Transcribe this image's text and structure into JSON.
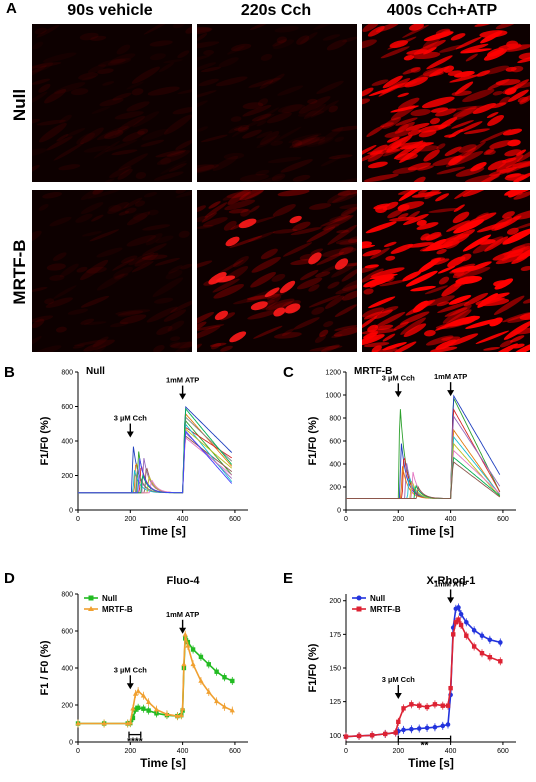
{
  "panel_A": {
    "letter": "A",
    "columns": [
      "90s vehicle",
      "220s Cch",
      "400s Cch+ATP"
    ],
    "rows": [
      "Null",
      "MRTF-B"
    ],
    "tile_intensity": [
      [
        0.12,
        0.14,
        0.85
      ],
      [
        0.14,
        0.35,
        0.95
      ]
    ]
  },
  "chart_data": [
    {
      "panel": "B",
      "type": "line",
      "title": "Null",
      "xlabel": "Time [s]",
      "ylabel": "F1/F0 (%)",
      "xlim": [
        0,
        650
      ],
      "ylim": [
        0,
        800
      ],
      "xticks": [
        0,
        200,
        400,
        600
      ],
      "yticks": [
        0,
        200,
        400,
        600,
        800
      ],
      "annotations": [
        {
          "text": "3 µM Cch",
          "x": 200,
          "y": 420
        },
        {
          "text": "1mM ATP",
          "x": 400,
          "y": 640
        }
      ],
      "series_note": "multiple single-cell traces",
      "series": [
        {
          "color": "#1f3fbf",
          "cch_onset": 205,
          "cch_peak": 380,
          "atp_peak": 600,
          "atp_decay_end": 330
        },
        {
          "color": "#e07a10",
          "cch_onset": 215,
          "cch_peak": 290,
          "atp_peak": 560,
          "atp_decay_end": 250
        },
        {
          "color": "#2ca02c",
          "cch_onset": 225,
          "cch_peak": 350,
          "atp_peak": 520,
          "atp_decay_end": 200
        },
        {
          "color": "#d62728",
          "cch_onset": 235,
          "cch_peak": 270,
          "atp_peak": 480,
          "atp_decay_end": 300
        },
        {
          "color": "#9467bd",
          "cch_onset": 245,
          "cch_peak": 310,
          "atp_peak": 450,
          "atp_decay_end": 180
        },
        {
          "color": "#8c564b",
          "cch_onset": 255,
          "cch_peak": 260,
          "atp_peak": 430,
          "atp_decay_end": 220
        },
        {
          "color": "#17becf",
          "cch_onset": 210,
          "cch_peak": 230,
          "atp_peak": 500,
          "atp_decay_end": 160
        },
        {
          "color": "#bcbd22",
          "cch_onset": 265,
          "cch_peak": 200,
          "atp_peak": 470,
          "atp_decay_end": 240
        },
        {
          "color": "#e377c2",
          "cch_onset": 275,
          "cch_peak": 180,
          "atp_peak": 420,
          "atp_decay_end": 200
        },
        {
          "color": "#7f7f7f",
          "cch_onset": 220,
          "cch_peak": 250,
          "atp_peak": 540,
          "atp_decay_end": 280
        },
        {
          "color": "#00b050",
          "cch_onset": 240,
          "cch_peak": 210,
          "atp_peak": 590,
          "atp_decay_end": 260
        },
        {
          "color": "#4040ff",
          "cch_onset": 230,
          "cch_peak": 300,
          "atp_peak": 460,
          "atp_decay_end": 150
        }
      ]
    },
    {
      "panel": "C",
      "type": "line",
      "title": "MRTF-B",
      "xlabel": "Time [s]",
      "ylabel": "F1/F0 (%)",
      "xlim": [
        0,
        650
      ],
      "ylim": [
        0,
        1200
      ],
      "xticks": [
        0,
        200,
        400,
        600
      ],
      "yticks": [
        0,
        200,
        400,
        600,
        800,
        1000,
        1200
      ],
      "annotations": [
        {
          "text": "3 µM Cch",
          "x": 200,
          "y": 980
        },
        {
          "text": "1mM ATP",
          "x": 400,
          "y": 990
        }
      ],
      "series_note": "multiple single-cell traces",
      "series": [
        {
          "color": "#2ca02c",
          "cch_onset": 200,
          "cch_peak": 950,
          "atp_peak": 980,
          "atp_decay_end": 150
        },
        {
          "color": "#1f3fbf",
          "cch_onset": 205,
          "cch_peak": 600,
          "atp_peak": 1000,
          "atp_decay_end": 300
        },
        {
          "color": "#d62728",
          "cch_onset": 215,
          "cch_peak": 500,
          "atp_peak": 880,
          "atp_decay_end": 150
        },
        {
          "color": "#9467bd",
          "cch_onset": 225,
          "cch_peak": 420,
          "atp_peak": 820,
          "atp_decay_end": 200
        },
        {
          "color": "#e07a10",
          "cch_onset": 210,
          "cch_peak": 380,
          "atp_peak": 700,
          "atp_decay_end": 120
        },
        {
          "color": "#17becf",
          "cch_onset": 235,
          "cch_peak": 300,
          "atp_peak": 640,
          "atp_decay_end": 130
        },
        {
          "color": "#bcbd22",
          "cch_onset": 245,
          "cch_peak": 260,
          "atp_peak": 580,
          "atp_decay_end": 110
        },
        {
          "color": "#e377c2",
          "cch_onset": 250,
          "cch_peak": 330,
          "atp_peak": 520,
          "atp_decay_end": 140
        },
        {
          "color": "#00b050",
          "cch_onset": 260,
          "cch_peak": 220,
          "atp_peak": 460,
          "atp_decay_end": 120
        },
        {
          "color": "#8c564b",
          "cch_onset": 270,
          "cch_peak": 200,
          "atp_peak": 420,
          "atp_decay_end": 110
        }
      ]
    },
    {
      "panel": "D",
      "type": "line",
      "title": "Fluo-4",
      "xlabel": "Time [s]",
      "ylabel": "F1 / F0 (%)",
      "xlim": [
        0,
        650
      ],
      "ylim": [
        0,
        800
      ],
      "xticks": [
        0,
        200,
        400,
        600
      ],
      "yticks": [
        0,
        200,
        400,
        600,
        800
      ],
      "legend": {
        "placement": "top-left"
      },
      "annotations": [
        {
          "text": "3 µM Cch",
          "x": 200,
          "y": 285
        },
        {
          "text": "1mM ATP",
          "x": 400,
          "y": 585
        },
        {
          "text": "****",
          "x": 215,
          "y": 20
        }
      ],
      "series": [
        {
          "name": "Null",
          "color": "#22bb22",
          "x": [
            0,
            100,
            190,
            200,
            210,
            220,
            230,
            250,
            270,
            300,
            340,
            380,
            395,
            400,
            405,
            410,
            420,
            440,
            470,
            500,
            530,
            560,
            590
          ],
          "y": [
            100,
            100,
            100,
            102,
            130,
            175,
            185,
            180,
            170,
            155,
            145,
            140,
            145,
            170,
            400,
            560,
            540,
            500,
            460,
            420,
            380,
            350,
            330
          ]
        },
        {
          "name": "MRTF-B",
          "color": "#f0a030",
          "x": [
            0,
            100,
            190,
            200,
            210,
            220,
            230,
            250,
            270,
            300,
            340,
            380,
            395,
            400,
            405,
            410,
            420,
            440,
            470,
            500,
            530,
            560,
            590
          ],
          "y": [
            100,
            100,
            100,
            104,
            180,
            260,
            275,
            250,
            215,
            175,
            150,
            140,
            145,
            180,
            420,
            580,
            520,
            420,
            330,
            270,
            220,
            190,
            170
          ]
        }
      ]
    },
    {
      "panel": "E",
      "type": "line",
      "title": "X-Rhod-1",
      "xlabel": "Time [s]",
      "ylabel": "F1/F0 (%)",
      "xlim": [
        0,
        650
      ],
      "ylim": [
        95,
        205
      ],
      "xticks": [
        0,
        200,
        400,
        600
      ],
      "yticks": [
        100,
        125,
        150,
        175,
        200
      ],
      "legend": {
        "placement": "top-left"
      },
      "annotations": [
        {
          "text": "3 µM Cch",
          "x": 200,
          "y": 127
        },
        {
          "text": "1mM ATP",
          "x": 400,
          "y": 198
        },
        {
          "text": "**",
          "x": 300,
          "y": 96
        }
      ],
      "series": [
        {
          "name": "Null",
          "color": "#2233dd",
          "x": [
            0,
            50,
            100,
            150,
            190,
            200,
            220,
            250,
            280,
            310,
            340,
            370,
            390,
            400,
            410,
            420,
            430,
            440,
            460,
            490,
            520,
            550,
            590
          ],
          "y": [
            99,
            99.5,
            100,
            101,
            102,
            103,
            104,
            104.5,
            105,
            105.5,
            106,
            107,
            108,
            130,
            180,
            194,
            195,
            190,
            184,
            178,
            174,
            171,
            169
          ]
        },
        {
          "name": "MRTF-B",
          "color": "#dd2233",
          "x": [
            0,
            50,
            100,
            150,
            190,
            200,
            220,
            250,
            280,
            310,
            340,
            370,
            390,
            400,
            410,
            420,
            430,
            440,
            460,
            490,
            520,
            550,
            590
          ],
          "y": [
            99,
            99.5,
            100,
            101,
            102,
            110,
            120,
            123,
            122,
            121,
            123,
            122,
            122,
            135,
            175,
            184,
            186,
            182,
            174,
            166,
            161,
            158,
            155
          ]
        }
      ]
    }
  ]
}
